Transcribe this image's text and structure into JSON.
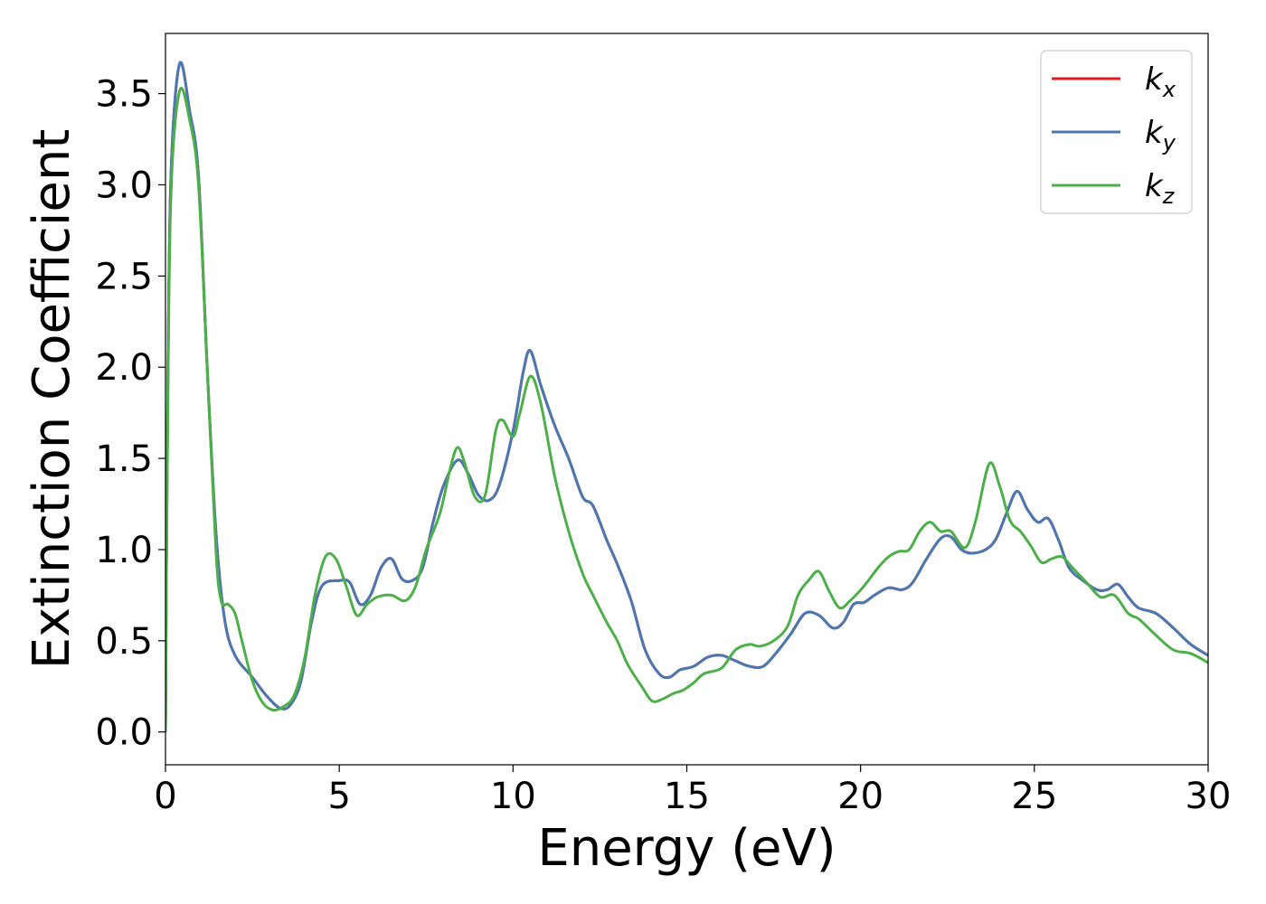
{
  "chart_data": {
    "type": "line",
    "title": "",
    "xlabel": "Energy (eV)",
    "ylabel": "Extinction Coefficient",
    "xlim": [
      0,
      30
    ],
    "ylim": [
      -0.18,
      3.83
    ],
    "x_ticks": [
      0,
      5,
      10,
      15,
      20,
      25,
      30
    ],
    "x_tick_labels": [
      "0",
      "5",
      "10",
      "15",
      "20",
      "25",
      "30"
    ],
    "y_ticks": [
      0.0,
      0.5,
      1.0,
      1.5,
      2.0,
      2.5,
      3.0,
      3.5
    ],
    "y_tick_labels": [
      "0.0",
      "0.5",
      "1.0",
      "1.5",
      "2.0",
      "2.5",
      "3.0",
      "3.5"
    ],
    "grid": false,
    "legend_position": "top-right",
    "series": [
      {
        "name": "k",
        "sub": "x",
        "color": "#e41a1c",
        "points": [
          [
            0,
            0.0
          ],
          [
            0.05,
            1.5
          ],
          [
            0.15,
            3.0
          ],
          [
            0.4,
            3.66
          ],
          [
            0.7,
            3.4
          ],
          [
            0.95,
            3.05
          ],
          [
            1.2,
            2.0
          ],
          [
            1.45,
            1.1
          ],
          [
            1.7,
            0.62
          ],
          [
            2.0,
            0.42
          ],
          [
            2.5,
            0.3
          ],
          [
            2.9,
            0.2
          ],
          [
            3.3,
            0.13
          ],
          [
            3.6,
            0.15
          ],
          [
            3.9,
            0.28
          ],
          [
            4.2,
            0.6
          ],
          [
            4.5,
            0.8
          ],
          [
            5.0,
            0.83
          ],
          [
            5.3,
            0.82
          ],
          [
            5.6,
            0.7
          ],
          [
            5.9,
            0.75
          ],
          [
            6.2,
            0.9
          ],
          [
            6.5,
            0.95
          ],
          [
            6.8,
            0.84
          ],
          [
            7.1,
            0.83
          ],
          [
            7.4,
            0.9
          ],
          [
            7.7,
            1.15
          ],
          [
            8.0,
            1.35
          ],
          [
            8.4,
            1.49
          ],
          [
            8.7,
            1.42
          ],
          [
            9.0,
            1.3
          ],
          [
            9.3,
            1.27
          ],
          [
            9.6,
            1.35
          ],
          [
            10.0,
            1.65
          ],
          [
            10.3,
            1.98
          ],
          [
            10.5,
            2.09
          ],
          [
            10.8,
            1.9
          ],
          [
            11.2,
            1.68
          ],
          [
            11.6,
            1.5
          ],
          [
            12.0,
            1.29
          ],
          [
            12.3,
            1.24
          ],
          [
            12.7,
            1.05
          ],
          [
            13.0,
            0.92
          ],
          [
            13.4,
            0.72
          ],
          [
            13.8,
            0.45
          ],
          [
            14.2,
            0.32
          ],
          [
            14.5,
            0.3
          ],
          [
            14.8,
            0.34
          ],
          [
            15.2,
            0.36
          ],
          [
            15.6,
            0.41
          ],
          [
            16.0,
            0.42
          ],
          [
            16.4,
            0.39
          ],
          [
            16.8,
            0.36
          ],
          [
            17.2,
            0.36
          ],
          [
            17.6,
            0.44
          ],
          [
            18.0,
            0.54
          ],
          [
            18.4,
            0.65
          ],
          [
            18.8,
            0.64
          ],
          [
            19.2,
            0.57
          ],
          [
            19.5,
            0.6
          ],
          [
            19.8,
            0.7
          ],
          [
            20.1,
            0.71
          ],
          [
            20.4,
            0.75
          ],
          [
            20.8,
            0.79
          ],
          [
            21.2,
            0.78
          ],
          [
            21.5,
            0.82
          ],
          [
            21.9,
            0.95
          ],
          [
            22.3,
            1.06
          ],
          [
            22.6,
            1.07
          ],
          [
            22.9,
            1.0
          ],
          [
            23.2,
            0.98
          ],
          [
            23.6,
            1.0
          ],
          [
            23.9,
            1.06
          ],
          [
            24.2,
            1.2
          ],
          [
            24.5,
            1.32
          ],
          [
            24.8,
            1.22
          ],
          [
            25.1,
            1.15
          ],
          [
            25.4,
            1.17
          ],
          [
            25.7,
            1.05
          ],
          [
            26.0,
            0.9
          ],
          [
            26.4,
            0.83
          ],
          [
            26.8,
            0.78
          ],
          [
            27.1,
            0.78
          ],
          [
            27.4,
            0.81
          ],
          [
            27.7,
            0.74
          ],
          [
            28.0,
            0.68
          ],
          [
            28.5,
            0.65
          ],
          [
            29.0,
            0.57
          ],
          [
            29.5,
            0.48
          ],
          [
            30.0,
            0.42
          ]
        ]
      },
      {
        "name": "k",
        "sub": "y",
        "color": "#4a78b0",
        "points": [
          [
            0,
            0.0
          ],
          [
            0.05,
            1.5
          ],
          [
            0.15,
            3.0
          ],
          [
            0.4,
            3.66
          ],
          [
            0.7,
            3.4
          ],
          [
            0.95,
            3.05
          ],
          [
            1.2,
            2.0
          ],
          [
            1.45,
            1.1
          ],
          [
            1.7,
            0.62
          ],
          [
            2.0,
            0.42
          ],
          [
            2.5,
            0.3
          ],
          [
            2.9,
            0.2
          ],
          [
            3.3,
            0.13
          ],
          [
            3.6,
            0.15
          ],
          [
            3.9,
            0.28
          ],
          [
            4.2,
            0.6
          ],
          [
            4.5,
            0.8
          ],
          [
            5.0,
            0.83
          ],
          [
            5.3,
            0.82
          ],
          [
            5.6,
            0.7
          ],
          [
            5.9,
            0.75
          ],
          [
            6.2,
            0.9
          ],
          [
            6.5,
            0.95
          ],
          [
            6.8,
            0.84
          ],
          [
            7.1,
            0.83
          ],
          [
            7.4,
            0.9
          ],
          [
            7.7,
            1.15
          ],
          [
            8.0,
            1.35
          ],
          [
            8.4,
            1.49
          ],
          [
            8.7,
            1.42
          ],
          [
            9.0,
            1.3
          ],
          [
            9.3,
            1.27
          ],
          [
            9.6,
            1.35
          ],
          [
            10.0,
            1.65
          ],
          [
            10.3,
            1.98
          ],
          [
            10.5,
            2.09
          ],
          [
            10.8,
            1.9
          ],
          [
            11.2,
            1.68
          ],
          [
            11.6,
            1.5
          ],
          [
            12.0,
            1.29
          ],
          [
            12.3,
            1.24
          ],
          [
            12.7,
            1.05
          ],
          [
            13.0,
            0.92
          ],
          [
            13.4,
            0.72
          ],
          [
            13.8,
            0.45
          ],
          [
            14.2,
            0.32
          ],
          [
            14.5,
            0.3
          ],
          [
            14.8,
            0.34
          ],
          [
            15.2,
            0.36
          ],
          [
            15.6,
            0.41
          ],
          [
            16.0,
            0.42
          ],
          [
            16.4,
            0.39
          ],
          [
            16.8,
            0.36
          ],
          [
            17.2,
            0.36
          ],
          [
            17.6,
            0.44
          ],
          [
            18.0,
            0.54
          ],
          [
            18.4,
            0.65
          ],
          [
            18.8,
            0.64
          ],
          [
            19.2,
            0.57
          ],
          [
            19.5,
            0.6
          ],
          [
            19.8,
            0.7
          ],
          [
            20.1,
            0.71
          ],
          [
            20.4,
            0.75
          ],
          [
            20.8,
            0.79
          ],
          [
            21.2,
            0.78
          ],
          [
            21.5,
            0.82
          ],
          [
            21.9,
            0.95
          ],
          [
            22.3,
            1.06
          ],
          [
            22.6,
            1.07
          ],
          [
            22.9,
            1.0
          ],
          [
            23.2,
            0.98
          ],
          [
            23.6,
            1.0
          ],
          [
            23.9,
            1.06
          ],
          [
            24.2,
            1.2
          ],
          [
            24.5,
            1.32
          ],
          [
            24.8,
            1.22
          ],
          [
            25.1,
            1.15
          ],
          [
            25.4,
            1.17
          ],
          [
            25.7,
            1.05
          ],
          [
            26.0,
            0.9
          ],
          [
            26.4,
            0.83
          ],
          [
            26.8,
            0.78
          ],
          [
            27.1,
            0.78
          ],
          [
            27.4,
            0.81
          ],
          [
            27.7,
            0.74
          ],
          [
            28.0,
            0.68
          ],
          [
            28.5,
            0.65
          ],
          [
            29.0,
            0.57
          ],
          [
            29.5,
            0.48
          ],
          [
            30.0,
            0.42
          ]
        ]
      },
      {
        "name": "k",
        "sub": "z",
        "color": "#4daf4a",
        "points": [
          [
            0,
            0.0
          ],
          [
            0.05,
            1.4
          ],
          [
            0.15,
            2.9
          ],
          [
            0.4,
            3.51
          ],
          [
            0.7,
            3.35
          ],
          [
            0.95,
            3.0
          ],
          [
            1.2,
            2.0
          ],
          [
            1.45,
            1.0
          ],
          [
            1.6,
            0.72
          ],
          [
            1.8,
            0.7
          ],
          [
            2.0,
            0.65
          ],
          [
            2.2,
            0.5
          ],
          [
            2.5,
            0.28
          ],
          [
            2.8,
            0.16
          ],
          [
            3.1,
            0.12
          ],
          [
            3.4,
            0.14
          ],
          [
            3.7,
            0.2
          ],
          [
            4.0,
            0.4
          ],
          [
            4.3,
            0.75
          ],
          [
            4.6,
            0.96
          ],
          [
            4.9,
            0.95
          ],
          [
            5.2,
            0.8
          ],
          [
            5.5,
            0.64
          ],
          [
            5.8,
            0.7
          ],
          [
            6.1,
            0.74
          ],
          [
            6.5,
            0.75
          ],
          [
            6.9,
            0.72
          ],
          [
            7.2,
            0.8
          ],
          [
            7.5,
            1.0
          ],
          [
            7.9,
            1.2
          ],
          [
            8.2,
            1.45
          ],
          [
            8.4,
            1.56
          ],
          [
            8.6,
            1.48
          ],
          [
            8.9,
            1.29
          ],
          [
            9.2,
            1.3
          ],
          [
            9.5,
            1.65
          ],
          [
            9.7,
            1.71
          ],
          [
            10.0,
            1.62
          ],
          [
            10.2,
            1.75
          ],
          [
            10.5,
            1.95
          ],
          [
            10.8,
            1.8
          ],
          [
            11.2,
            1.4
          ],
          [
            11.6,
            1.1
          ],
          [
            12.0,
            0.87
          ],
          [
            12.3,
            0.75
          ],
          [
            12.7,
            0.6
          ],
          [
            13.0,
            0.5
          ],
          [
            13.3,
            0.37
          ],
          [
            13.7,
            0.25
          ],
          [
            14.0,
            0.17
          ],
          [
            14.3,
            0.18
          ],
          [
            14.6,
            0.21
          ],
          [
            14.9,
            0.23
          ],
          [
            15.2,
            0.27
          ],
          [
            15.5,
            0.32
          ],
          [
            16.0,
            0.35
          ],
          [
            16.4,
            0.45
          ],
          [
            16.8,
            0.48
          ],
          [
            17.1,
            0.47
          ],
          [
            17.5,
            0.5
          ],
          [
            17.9,
            0.58
          ],
          [
            18.2,
            0.75
          ],
          [
            18.5,
            0.83
          ],
          [
            18.8,
            0.88
          ],
          [
            19.1,
            0.77
          ],
          [
            19.4,
            0.68
          ],
          [
            19.7,
            0.72
          ],
          [
            20.1,
            0.8
          ],
          [
            20.5,
            0.9
          ],
          [
            20.8,
            0.96
          ],
          [
            21.1,
            0.99
          ],
          [
            21.4,
            1.0
          ],
          [
            21.7,
            1.1
          ],
          [
            22.0,
            1.15
          ],
          [
            22.3,
            1.1
          ],
          [
            22.6,
            1.1
          ],
          [
            23.0,
            1.01
          ],
          [
            23.3,
            1.15
          ],
          [
            23.7,
            1.47
          ],
          [
            24.0,
            1.35
          ],
          [
            24.3,
            1.16
          ],
          [
            24.6,
            1.1
          ],
          [
            24.9,
            1.02
          ],
          [
            25.2,
            0.93
          ],
          [
            25.5,
            0.95
          ],
          [
            25.8,
            0.96
          ],
          [
            26.1,
            0.9
          ],
          [
            26.5,
            0.82
          ],
          [
            26.9,
            0.74
          ],
          [
            27.3,
            0.75
          ],
          [
            27.7,
            0.65
          ],
          [
            28.0,
            0.62
          ],
          [
            28.5,
            0.53
          ],
          [
            29.0,
            0.45
          ],
          [
            29.5,
            0.43
          ],
          [
            30.0,
            0.38
          ]
        ]
      }
    ]
  }
}
